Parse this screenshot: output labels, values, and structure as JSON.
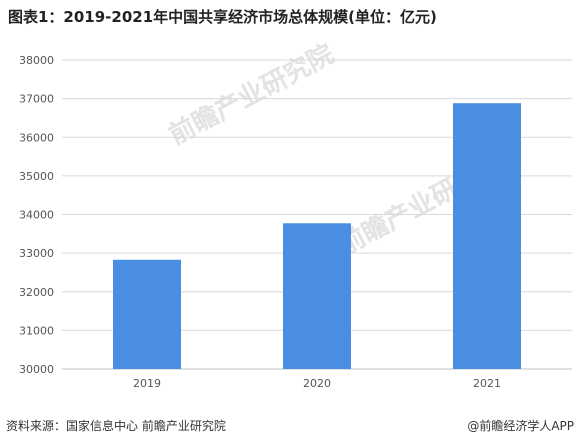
{
  "chart_data": {
    "type": "bar",
    "title": "图表1：2019-2021年中国共享经济市场总体规模(单位：亿元)",
    "categories": [
      "2019",
      "2020",
      "2021"
    ],
    "values": [
      32828,
      33773,
      36881
    ],
    "ylim": [
      30000,
      38000
    ],
    "yticks": [
      "30000",
      "31000",
      "32000",
      "33000",
      "34000",
      "35000",
      "36000",
      "37000",
      "38000"
    ],
    "grid": true,
    "colors": {
      "bar": "#4a8ee4",
      "grid": "#d9d9d9"
    }
  },
  "footer": {
    "source": "资料来源：国家信息中心 前瞻产业研究院",
    "credit": "@前瞻经济学人APP"
  },
  "watermark": {
    "text": "前瞻产业研究院"
  }
}
